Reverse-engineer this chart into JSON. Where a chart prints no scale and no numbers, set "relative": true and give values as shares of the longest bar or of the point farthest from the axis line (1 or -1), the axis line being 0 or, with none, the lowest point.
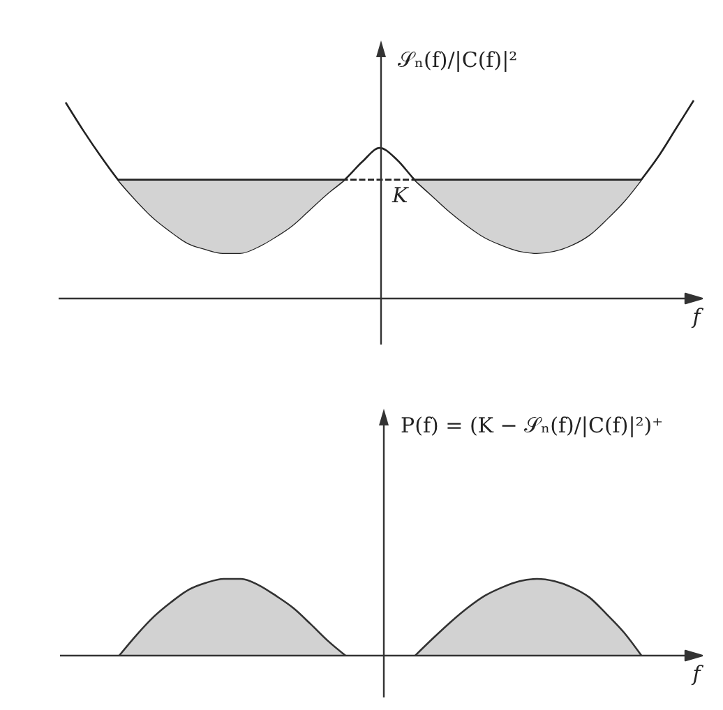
{
  "chart_data": [
    {
      "type": "line",
      "relative": true,
      "xlabel": "f",
      "ylabel": "𝒮ₙ(f)/|C(f)|²",
      "categories": [
        null,
        null,
        null,
        null,
        null,
        null,
        null,
        null,
        null,
        null,
        null,
        null,
        null,
        null,
        null,
        null,
        null,
        null,
        null,
        null,
        null,
        null,
        null,
        null,
        null,
        null,
        null,
        null,
        null,
        null,
        null,
        null,
        null,
        null,
        null,
        null,
        null
      ],
      "series": [
        {
          "color": "#222222",
          "values": [
            0.99,
            0.85,
            0.72,
            0.6,
            0.5,
            0.41,
            0.34,
            0.28,
            0.25,
            0.23,
            0.23,
            0.26,
            0.31,
            0.37,
            0.45,
            0.53,
            0.6,
            0.69,
            0.76,
            0.7,
            0.6,
            0.52,
            0.44,
            0.37,
            0.31,
            0.27,
            0.24,
            0.23,
            0.24,
            0.27,
            0.32,
            0.4,
            0.49,
            0.6,
            0.72,
            0.86,
            1
          ]
        },
        {
          "color": "#222222",
          "values": [
            null,
            null,
            null,
            0.6,
            0.6,
            0.6,
            0.6,
            0.6,
            0.6,
            0.6,
            0.6,
            0.6,
            0.6,
            0.6,
            0.6,
            0.6,
            0.6,
            null,
            null,
            null,
            null,
            null,
            null,
            null,
            null,
            null,
            null,
            null,
            null,
            null,
            null,
            null,
            null,
            null,
            null,
            null,
            null
          ],
          "lower": [
            null,
            null,
            null,
            0.6,
            0.5,
            0.41,
            0.34,
            0.28,
            0.25,
            0.23,
            0.23,
            0.26,
            0.31,
            0.37,
            0.45,
            0.53,
            0.6,
            null,
            null,
            null,
            null,
            null,
            null,
            null,
            null,
            null,
            null,
            null,
            null,
            null,
            null,
            null,
            null,
            null,
            null,
            null,
            null
          ],
          "upper": [
            null,
            null,
            null,
            0.6,
            0.6,
            0.6,
            0.6,
            0.6,
            0.6,
            0.6,
            0.6,
            0.6,
            0.6,
            0.6,
            0.6,
            0.6,
            0.6,
            null,
            null,
            null,
            null,
            null,
            null,
            null,
            null,
            null,
            null,
            null,
            null,
            null,
            null,
            null,
            null,
            null,
            null,
            null,
            null
          ]
        },
        {
          "color": "#222222",
          "line_style": "dashed",
          "values": [
            null,
            null,
            null,
            null,
            null,
            null,
            null,
            null,
            null,
            null,
            null,
            null,
            null,
            null,
            null,
            null,
            0.6,
            0.6,
            0.6,
            0.6,
            0.6,
            null,
            null,
            null,
            null,
            null,
            null,
            null,
            null,
            null,
            null,
            null,
            null,
            null,
            null,
            null,
            null
          ]
        },
        {
          "color": "#222222",
          "values": [
            null,
            null,
            null,
            null,
            null,
            null,
            null,
            null,
            null,
            null,
            null,
            null,
            null,
            null,
            null,
            null,
            null,
            null,
            null,
            null,
            0.6,
            0.6,
            0.6,
            0.6,
            0.6,
            0.6,
            0.6,
            0.6,
            0.6,
            0.6,
            0.6,
            0.6,
            0.6,
            0.6,
            null,
            null,
            null
          ],
          "lower": [
            null,
            null,
            null,
            null,
            null,
            null,
            null,
            null,
            null,
            null,
            null,
            null,
            null,
            null,
            null,
            null,
            null,
            null,
            null,
            null,
            0.6,
            0.52,
            0.44,
            0.37,
            0.31,
            0.27,
            0.24,
            0.23,
            0.24,
            0.27,
            0.32,
            0.4,
            0.49,
            0.6,
            null,
            null,
            null
          ],
          "upper": [
            null,
            null,
            null,
            null,
            null,
            null,
            null,
            null,
            null,
            null,
            null,
            null,
            null,
            null,
            null,
            null,
            null,
            null,
            null,
            null,
            0.6,
            0.6,
            0.6,
            0.6,
            0.6,
            0.6,
            0.6,
            0.6,
            0.6,
            0.6,
            0.6,
            0.6,
            0.6,
            0.6,
            null,
            null,
            null
          ]
        }
      ],
      "annotations": [
        {
          "text": "K",
          "y": 0.6
        }
      ]
    },
    {
      "type": "area",
      "relative": true,
      "xlabel": "f",
      "ylabel": "P(f) = (K − 𝒮ₙ(f)/|C(f)|²)⁺",
      "categories": [
        null,
        null,
        null,
        null,
        null,
        null,
        null,
        null,
        null,
        null,
        null,
        null,
        null,
        null,
        null,
        null,
        null,
        null,
        null,
        null,
        null,
        null,
        null,
        null,
        null,
        null,
        null,
        null,
        null,
        null,
        null,
        null,
        null,
        null,
        null,
        null,
        null
      ],
      "series": [
        {
          "color": "#d2d2d2",
          "values": [
            null,
            null,
            null,
            0,
            0.27,
            0.51,
            0.7,
            0.86,
            0.95,
            1,
            1,
            0.92,
            0.78,
            0.62,
            0.41,
            0.19,
            0,
            null,
            null,
            null,
            0,
            0.22,
            0.43,
            0.62,
            0.78,
            0.89,
            0.97,
            1,
            0.97,
            0.89,
            0.76,
            0.54,
            0.3,
            0,
            null,
            null,
            null
          ]
        }
      ]
    }
  ]
}
